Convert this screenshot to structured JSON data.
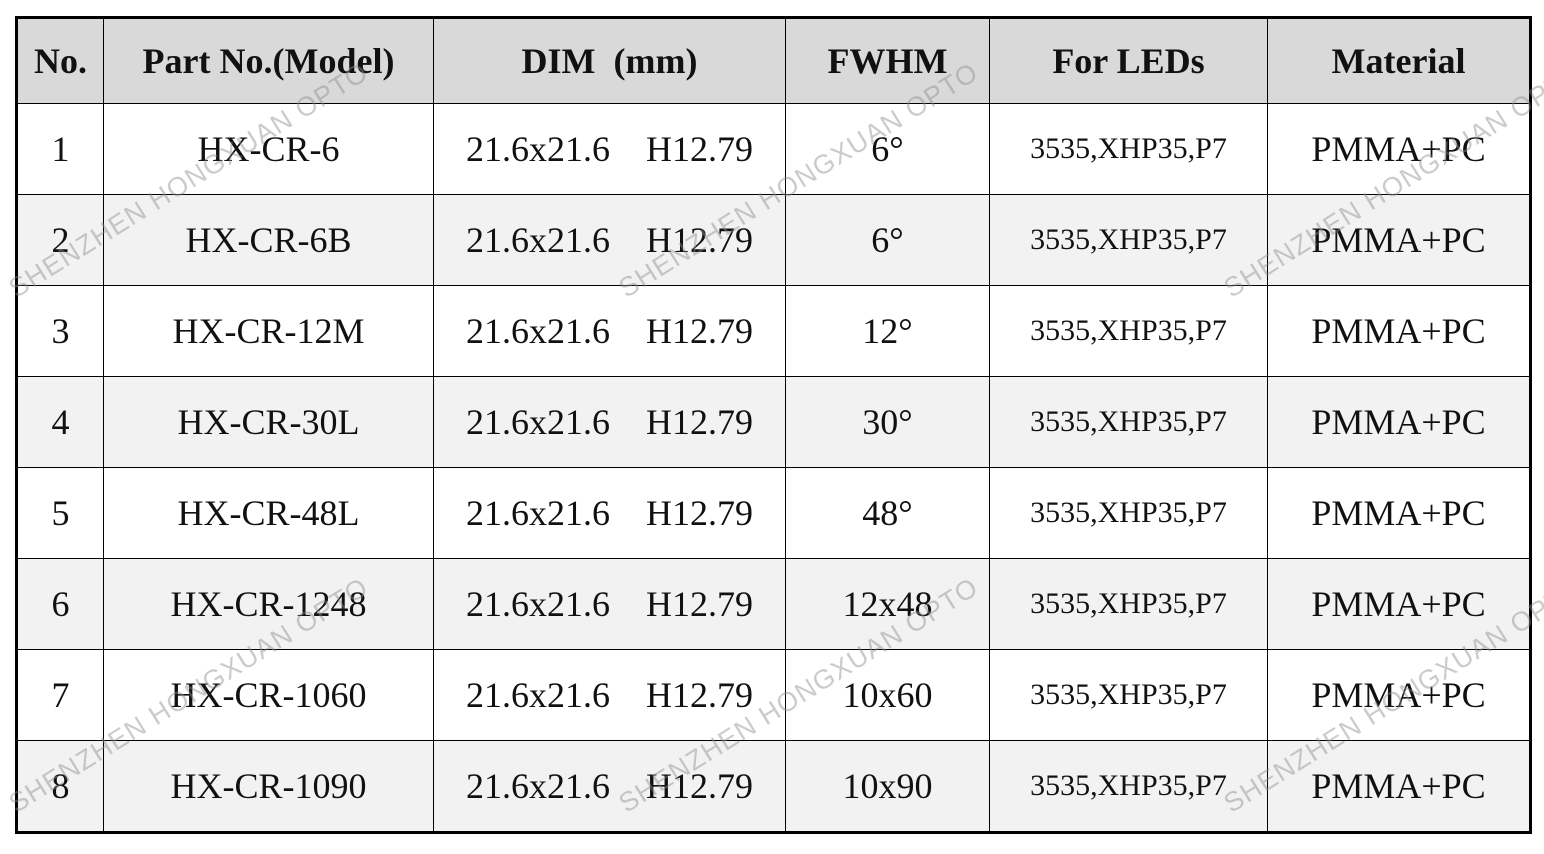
{
  "table": {
    "header": [
      "No.",
      "Part No.(Model)",
      "DIM  (mm)",
      "FWHM",
      "For LEDs",
      "Material"
    ],
    "rows": [
      [
        "1",
        "HX-CR-6",
        "21.6x21.6    H12.79",
        "6°",
        "3535,XHP35,P7",
        "PMMA+PC"
      ],
      [
        "2",
        "HX-CR-6B",
        "21.6x21.6    H12.79",
        "6°",
        "3535,XHP35,P7",
        "PMMA+PC"
      ],
      [
        "3",
        "HX-CR-12M",
        "21.6x21.6    H12.79",
        "12°",
        "3535,XHP35,P7",
        "PMMA+PC"
      ],
      [
        "4",
        "HX-CR-30L",
        "21.6x21.6    H12.79",
        "30°",
        "3535,XHP35,P7",
        "PMMA+PC"
      ],
      [
        "5",
        "HX-CR-48L",
        "21.6x21.6    H12.79",
        "48°",
        "3535,XHP35,P7",
        "PMMA+PC"
      ],
      [
        "6",
        "HX-CR-1248",
        "21.6x21.6    H12.79",
        "12x48",
        "3535,XHP35,P7",
        "PMMA+PC"
      ],
      [
        "7",
        "HX-CR-1060",
        "21.6x21.6    H12.79",
        "10x60",
        "3535,XHP35,P7",
        "PMMA+PC"
      ],
      [
        "8",
        "HX-CR-1090",
        "21.6x21.6    H12.79",
        "10x90",
        "3535,XHP35,P7",
        "PMMA+PC"
      ]
    ]
  },
  "watermark": "SHENZHEN HONGXUAN OPTO"
}
